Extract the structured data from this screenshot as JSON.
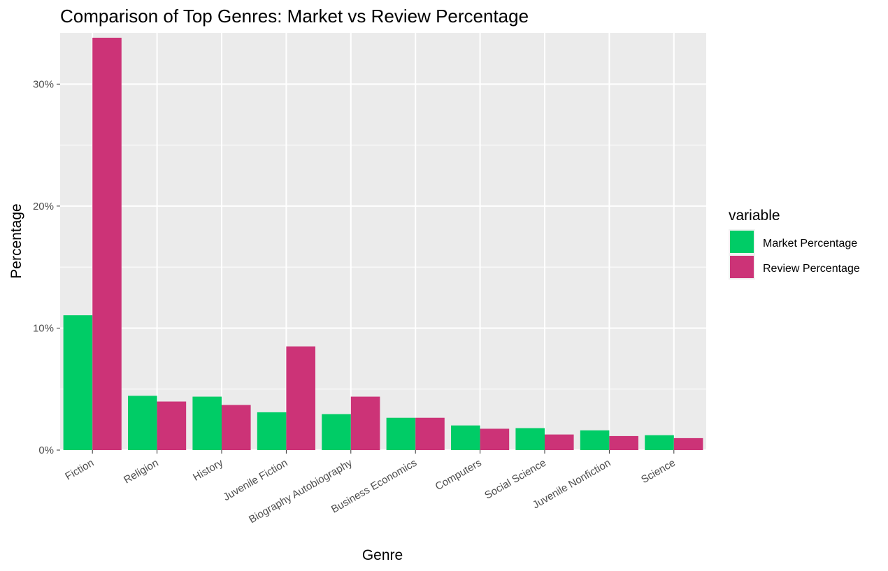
{
  "chart_data": {
    "type": "bar",
    "title": "Comparison of Top Genres: Market vs Review Percentage",
    "xlabel": "Genre",
    "ylabel": "Percentage",
    "categories": [
      "Fiction",
      "Religion",
      "History",
      "Juvenile Fiction",
      "Biography  Autobiography",
      "Business  Economics",
      "Computers",
      "Social Science",
      "Juvenile Nonfiction",
      "Science"
    ],
    "series": [
      {
        "name": "Market Percentage",
        "color": "#00CC66",
        "values": [
          11.05,
          4.45,
          4.38,
          3.1,
          2.95,
          2.65,
          2.02,
          1.8,
          1.62,
          1.22
        ]
      },
      {
        "name": "Review Percentage",
        "color": "#CC3377",
        "values": [
          33.8,
          3.98,
          3.7,
          8.5,
          4.38,
          2.65,
          1.75,
          1.28,
          1.15,
          0.98
        ]
      }
    ],
    "ylim": [
      0,
      34.2
    ],
    "yticks": [
      0,
      10,
      20,
      30
    ],
    "ytick_labels": [
      "0%",
      "10%",
      "20%",
      "30%"
    ],
    "grid": true,
    "legend": {
      "title": "variable",
      "placement": "right"
    }
  }
}
